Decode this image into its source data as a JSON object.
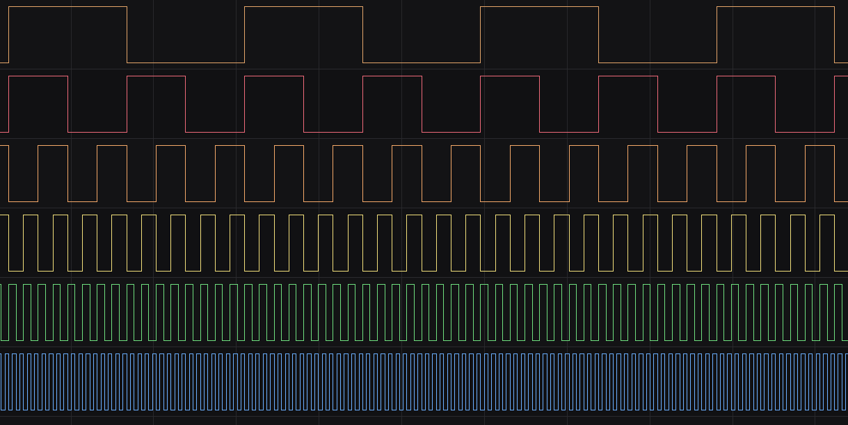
{
  "viewer": {
    "background_color": "#131315",
    "alt_track_color": "#111113",
    "separator_color": "#2a2a2e",
    "grid_color": "#3a3a3e"
  },
  "channels": [
    {
      "id": "ch0",
      "color": "#e5a66a",
      "relative_frequency": 1,
      "starts_high": false
    },
    {
      "id": "ch1",
      "color": "#f06a7a",
      "relative_frequency": 2,
      "starts_high": false
    },
    {
      "id": "ch2",
      "color": "#f5a969",
      "relative_frequency": 4,
      "starts_high": true
    },
    {
      "id": "ch3",
      "color": "#f3e07c",
      "relative_frequency": 8,
      "starts_high": true
    },
    {
      "id": "ch4",
      "color": "#6fe07f",
      "relative_frequency": 16,
      "starts_high": true
    },
    {
      "id": "ch5",
      "color": "#6aaeff",
      "relative_frequency": 32,
      "starts_high": true
    }
  ]
}
